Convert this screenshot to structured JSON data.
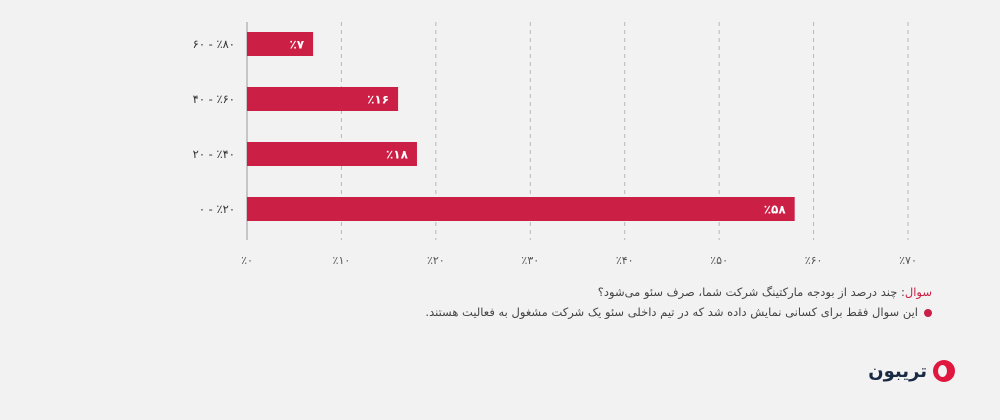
{
  "chart_data": {
    "type": "bar",
    "orientation": "horizontal",
    "categories": [
      "۶۰ - ٪۸۰",
      "۴۰ - ٪۶۰",
      "۲۰ - ٪۴۰",
      "۰ - ٪۲۰"
    ],
    "values": [
      7,
      16,
      18,
      58
    ],
    "value_labels": [
      "٪۷",
      "٪۱۶",
      "٪۱۸",
      "٪۵۸"
    ],
    "xlim": [
      0,
      70
    ],
    "xticks": [
      0,
      10,
      20,
      30,
      40,
      50,
      60,
      70
    ],
    "xtick_labels": [
      "٪۰",
      "٪۱۰",
      "٪۲۰",
      "٪۳۰",
      "٪۴۰",
      "٪۵۰",
      "٪۶۰",
      "٪۷۰"
    ],
    "grid": true,
    "bar_color": "#cc1f45",
    "title": "",
    "xlabel": "",
    "ylabel": ""
  },
  "notes": {
    "question_label": "سوال",
    "question_text": ": چند درصد از بودجه مارکتینگ شرکت شما، صرف سئو می‌شود؟",
    "footnote": "این سوال فقط برای کسانی نمایش داده شد که در تیم داخلی سئو یک شرکت مشغول به فعالیت هستند."
  },
  "brand": {
    "name": "تریبون",
    "icon": "tribune-logo-icon",
    "color": "#e0173f"
  }
}
